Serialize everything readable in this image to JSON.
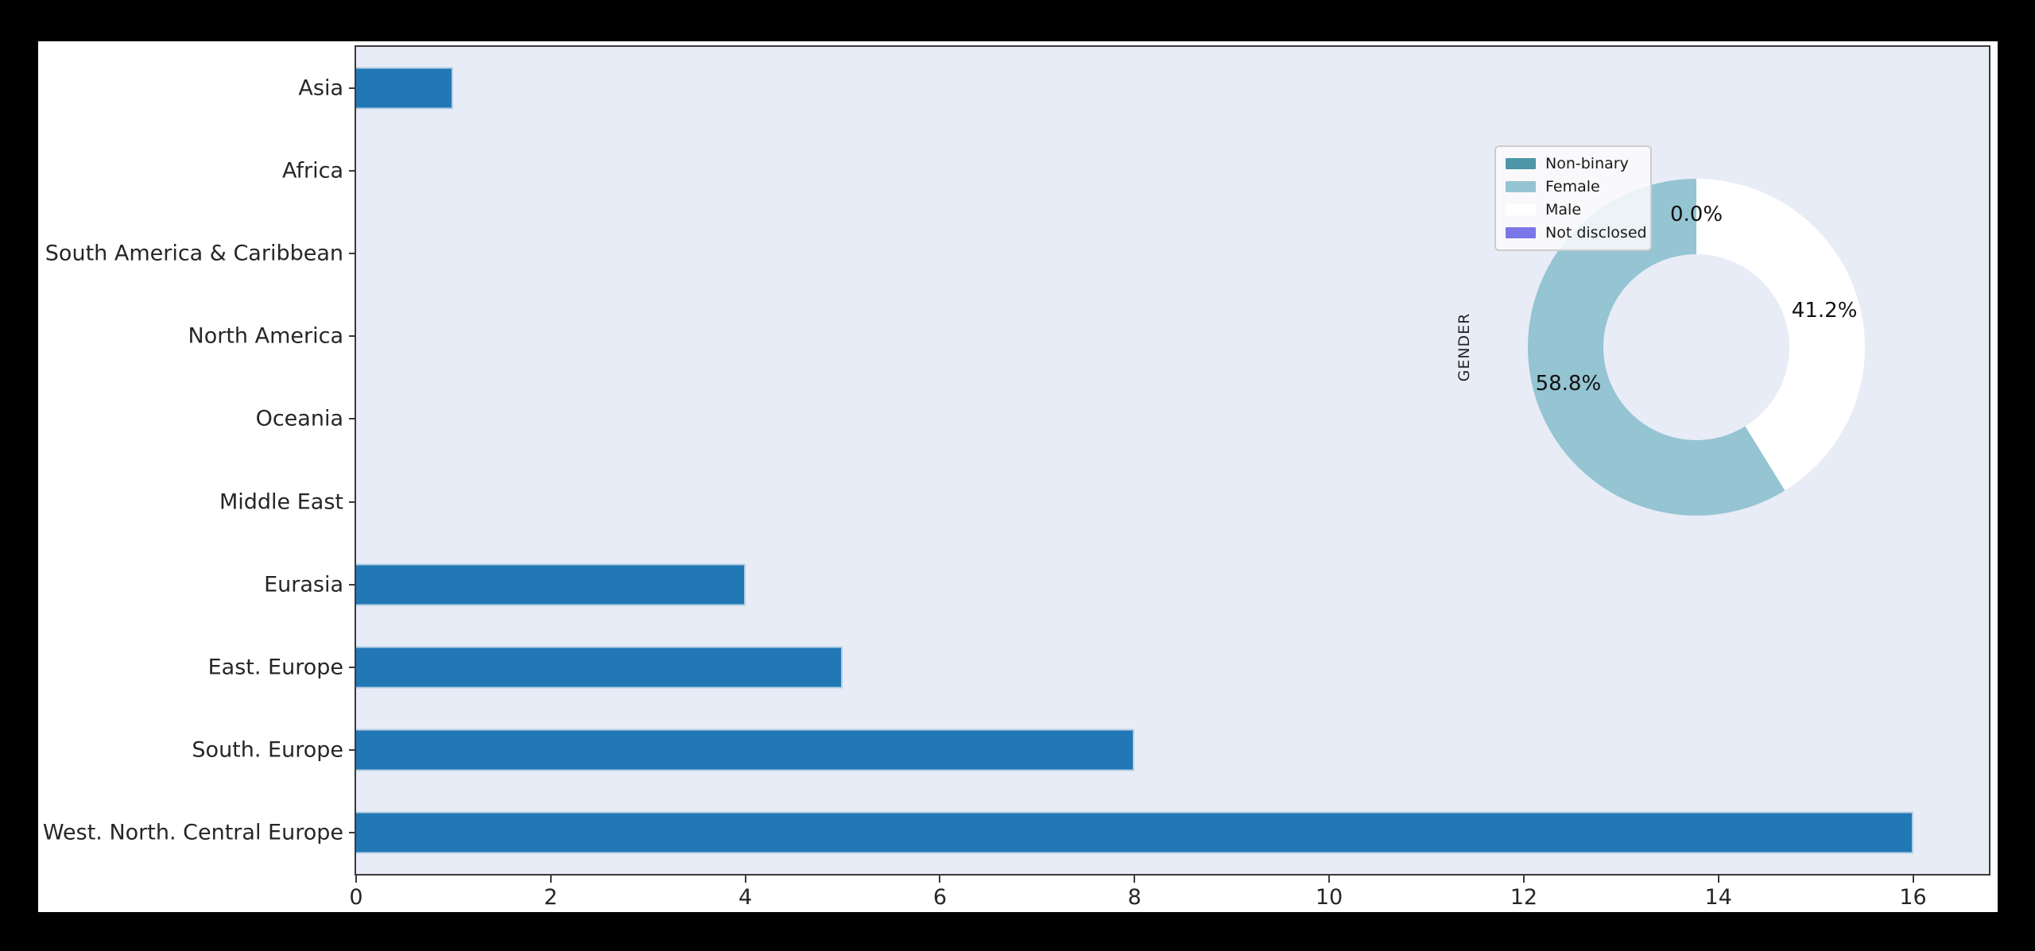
{
  "figure": {
    "outer_background": "#000000",
    "background": "#ffffff",
    "text_color": "#262626",
    "spine_color": "#3a3a3a"
  },
  "chart_data": [
    {
      "type": "bar",
      "orientation": "horizontal",
      "title": "",
      "xlabel": "",
      "ylabel": "",
      "categories": [
        "Asia",
        "Africa",
        "South America & Caribbean",
        "North America",
        "Oceania",
        "Middle East",
        "Eurasia",
        "East. Europe",
        "South. Europe",
        "West. North. Central Europe"
      ],
      "values": [
        1,
        0,
        0,
        0,
        0,
        0,
        4,
        5,
        8,
        16
      ],
      "xlim": [
        0,
        16.78
      ],
      "x_ticks": [
        0,
        2,
        4,
        6,
        8,
        10,
        12,
        14,
        16
      ],
      "grid": false,
      "plot_bg": "#e8ecf7",
      "bar_color": "#2277b5"
    },
    {
      "type": "pie",
      "donut": true,
      "ylabel": "GENDER",
      "start_angle": 90,
      "counterclock": true,
      "pct_distance": 0.79,
      "legend_position": "upper-left-of-pie",
      "slices": [
        {
          "label": "Non-binary",
          "value": 0.0,
          "pct_label": "0.0%",
          "mid_angle": 90,
          "color": "#4c96a8"
        },
        {
          "label": "Female",
          "value": 58.8,
          "pct_label": "58.8%",
          "mid_angle": 195.84,
          "color": "#95c4d2"
        },
        {
          "label": "Male",
          "value": 41.2,
          "pct_label": "41.2%",
          "mid_angle": 15.84,
          "color": "#ffffff"
        },
        {
          "label": "Not disclosed",
          "value": 0.0,
          "pct_label": null,
          "mid_angle": 90,
          "color": "#7c77e8"
        }
      ]
    }
  ]
}
